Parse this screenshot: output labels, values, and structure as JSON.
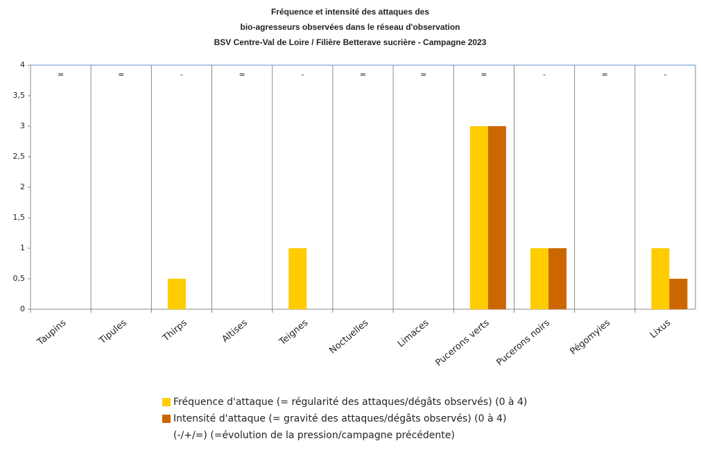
{
  "chart_data": {
    "type": "bar",
    "title": [
      "Fréquence et intensité des attaques des",
      "bio-agresseurs observées dans le réseau d'observation",
      "BSV Centre-Val de Loire  / Filière Betterave sucrière - Campagne 2023"
    ],
    "categories": [
      "Taupins",
      "Tipules",
      "Thirps",
      "Altises",
      "Teignes",
      "Noctuelles",
      "Limaces",
      "Pucerons verts",
      "Pucerons noirs",
      "Pégomyies",
      "Lixus"
    ],
    "annotations": [
      "=",
      "=",
      "-",
      "=",
      "-",
      "=",
      "=",
      "=",
      "-",
      "=",
      "-"
    ],
    "series": [
      {
        "name": "Fréquence d'attaque (= régularité des attaques/dégâts observés) (0 à 4)",
        "color": "#FFCC00",
        "values": [
          0,
          0,
          0.5,
          0,
          1,
          0,
          0,
          3,
          1,
          0,
          1
        ]
      },
      {
        "name": "Intensité d'attaque (= gravité des attaques/dégâts observés) (0 à 4)",
        "color": "#CC6600",
        "values": [
          0,
          0,
          0,
          0,
          0,
          0,
          0,
          3,
          1,
          0,
          0.5
        ]
      }
    ],
    "legend_note": "(-/+/=) (=évolution de la pression/campagne précédente)",
    "ylim": [
      0,
      4
    ],
    "yticks": [
      0,
      {
        "value": 0.5,
        "label": "0,5"
      },
      1,
      {
        "value": 1.5,
        "label": "1,5"
      },
      2,
      {
        "value": 2.5,
        "label": "2,5"
      },
      3,
      {
        "value": 3.5,
        "label": "3,5"
      },
      4
    ]
  }
}
